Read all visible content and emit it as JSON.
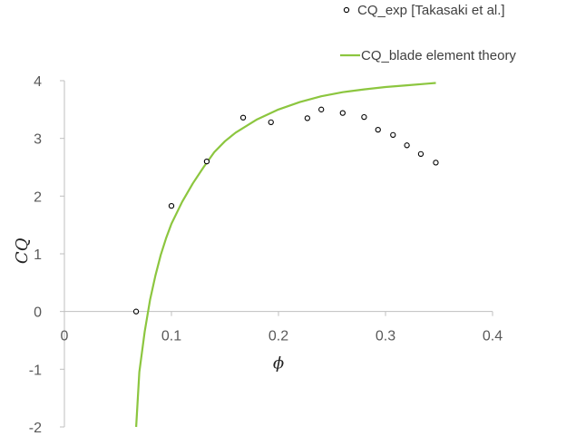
{
  "chart_data": {
    "type": "scatter",
    "xlabel": "ϕ",
    "ylabel": "CQ",
    "xlim": [
      0,
      0.4
    ],
    "ylim": [
      -2,
      4
    ],
    "x_ticks": [
      "0",
      "0.1",
      "0.2",
      "0.3",
      "0.4"
    ],
    "y_ticks": [
      "-2",
      "-1",
      "0",
      "1",
      "2",
      "3",
      "4"
    ],
    "grid": false,
    "legend_position": "top-right",
    "series": [
      {
        "name": "CQ_exp [Takasaki et al.]",
        "kind": "markers",
        "marker": "open-circle",
        "color": "#000000",
        "x": [
          0.067,
          0.1,
          0.133,
          0.167,
          0.193,
          0.227,
          0.24,
          0.26,
          0.28,
          0.293,
          0.307,
          0.32,
          0.333,
          0.347
        ],
        "y": [
          0.0,
          1.83,
          2.6,
          3.36,
          3.28,
          3.35,
          3.5,
          3.44,
          3.37,
          3.15,
          3.06,
          2.88,
          2.73,
          2.58
        ]
      },
      {
        "name": "CQ_blade element theory",
        "kind": "line",
        "color": "#8cc63f",
        "x": [
          0.067,
          0.07,
          0.075,
          0.08,
          0.085,
          0.09,
          0.095,
          0.1,
          0.11,
          0.12,
          0.13,
          0.14,
          0.15,
          0.16,
          0.18,
          0.2,
          0.22,
          0.24,
          0.26,
          0.28,
          0.3,
          0.32,
          0.34,
          0.347
        ],
        "y": [
          -2.0,
          -1.05,
          -0.35,
          0.2,
          0.62,
          0.98,
          1.27,
          1.52,
          1.9,
          2.22,
          2.5,
          2.76,
          2.95,
          3.1,
          3.33,
          3.5,
          3.63,
          3.73,
          3.8,
          3.85,
          3.89,
          3.92,
          3.95,
          3.96
        ]
      }
    ]
  }
}
